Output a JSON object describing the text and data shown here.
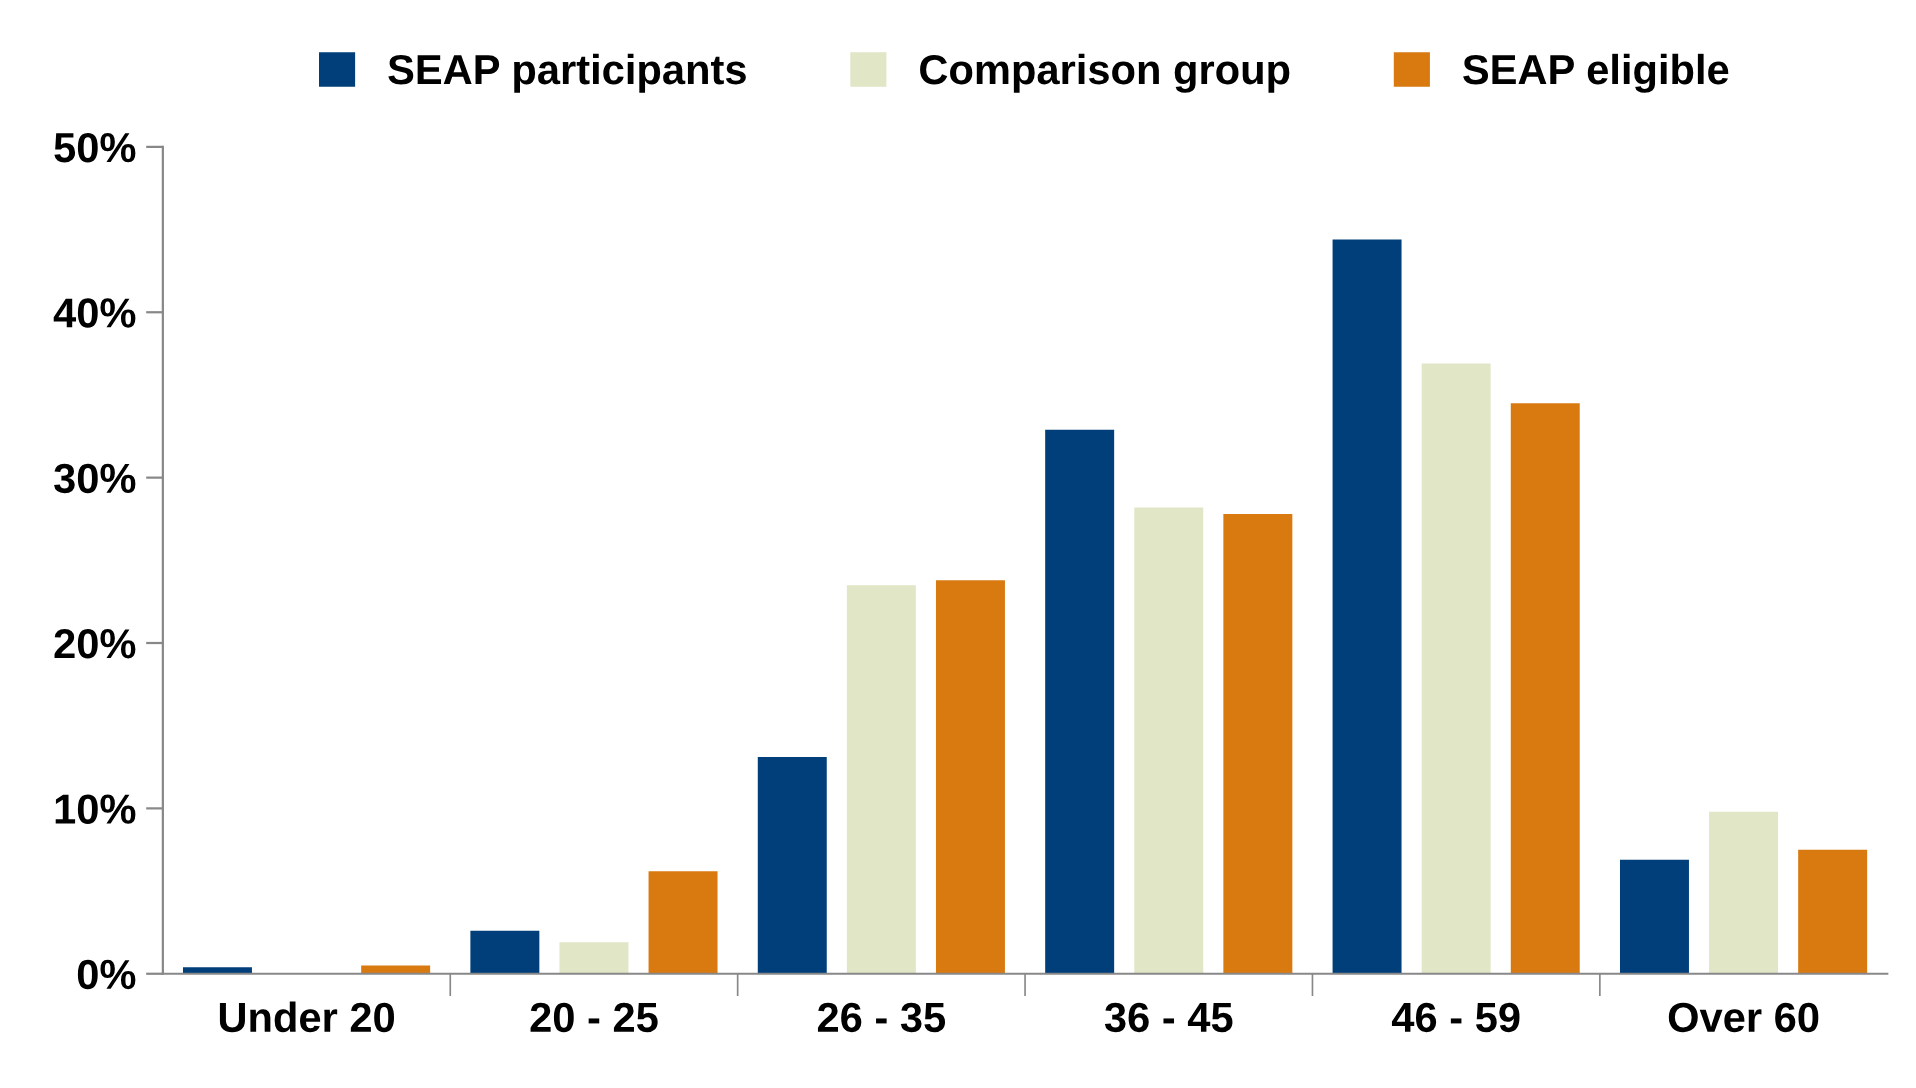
{
  "chart_data": {
    "type": "bar",
    "categories": [
      "Under 20",
      "20 - 25",
      "26 - 35",
      "36 - 45",
      "46 - 59",
      "Over 60"
    ],
    "series": [
      {
        "name": "SEAP participants",
        "color": "#003f7a",
        "values": [
          0.4,
          2.6,
          13.1,
          32.9,
          44.4,
          6.9
        ]
      },
      {
        "name": "Comparison group",
        "color": "#e1e6c7",
        "values": [
          null,
          1.9,
          23.5,
          28.2,
          36.9,
          9.8
        ]
      },
      {
        "name": "SEAP eligible",
        "color": "#d87a10",
        "values": [
          0.5,
          6.2,
          23.8,
          27.8,
          34.5,
          7.5
        ]
      }
    ],
    "ylim": [
      0,
      50
    ],
    "yticks": [
      {
        "value": 0,
        "label": "0%"
      },
      {
        "value": 10,
        "label": "10%"
      },
      {
        "value": 20,
        "label": "20%"
      },
      {
        "value": 30,
        "label": "30%"
      },
      {
        "value": 40,
        "label": "40%"
      },
      {
        "value": 50,
        "label": "50%"
      }
    ],
    "grid": false,
    "legend": "top"
  }
}
